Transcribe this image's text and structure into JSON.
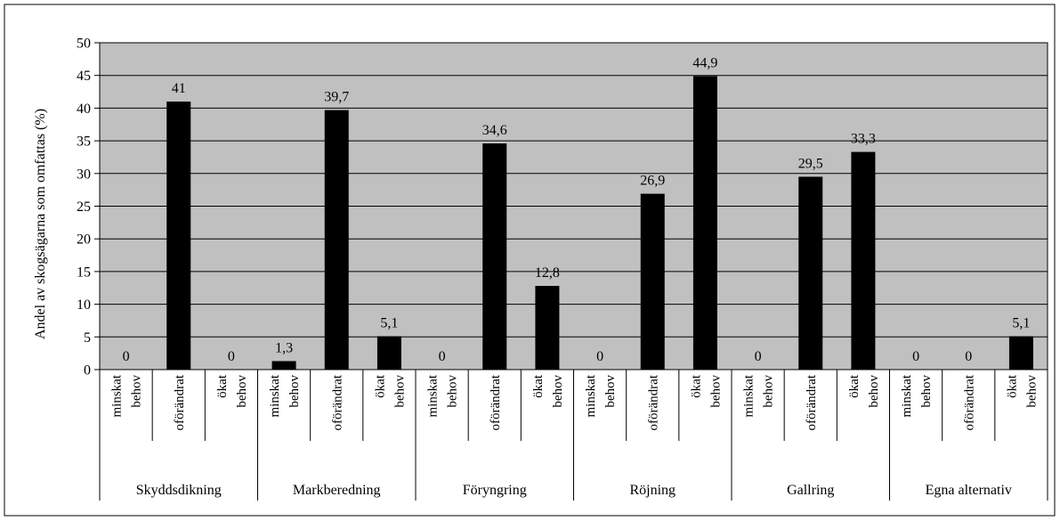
{
  "chart_data": {
    "type": "bar",
    "ylabel": "Andel av skogsägarna som omfattas (%)",
    "ylim": [
      0,
      50
    ],
    "yticks": [
      0,
      5,
      10,
      15,
      20,
      25,
      30,
      35,
      40,
      45,
      50
    ],
    "grid": true,
    "legend": "none",
    "colors": {
      "plot_bg": "#c0c0c0",
      "bar": "#000000",
      "grid": "#000000"
    },
    "groups": [
      {
        "name": "Skyddsdikning",
        "bars": [
          {
            "label": [
              "minskat",
              "behov"
            ],
            "value": 0,
            "value_label": "0"
          },
          {
            "label": [
              "oförändrat"
            ],
            "value": 41,
            "value_label": "41"
          },
          {
            "label": [
              "ökat",
              "behov"
            ],
            "value": 0,
            "value_label": "0"
          }
        ]
      },
      {
        "name": "Markberedning",
        "bars": [
          {
            "label": [
              "minskat",
              "behov"
            ],
            "value": 1.3,
            "value_label": "1,3"
          },
          {
            "label": [
              "oförändrat"
            ],
            "value": 39.7,
            "value_label": "39,7"
          },
          {
            "label": [
              "ökat",
              "behov"
            ],
            "value": 5.1,
            "value_label": "5,1"
          }
        ]
      },
      {
        "name": "Föryngring",
        "bars": [
          {
            "label": [
              "minskat",
              "behov"
            ],
            "value": 0,
            "value_label": "0"
          },
          {
            "label": [
              "oförändrat"
            ],
            "value": 34.6,
            "value_label": "34,6"
          },
          {
            "label": [
              "ökat",
              "behov"
            ],
            "value": 12.8,
            "value_label": "12,8"
          }
        ]
      },
      {
        "name": "Röjning",
        "bars": [
          {
            "label": [
              "minskat",
              "behov"
            ],
            "value": 0,
            "value_label": "0"
          },
          {
            "label": [
              "oförändrat"
            ],
            "value": 26.9,
            "value_label": "26,9"
          },
          {
            "label": [
              "ökat",
              "behov"
            ],
            "value": 44.9,
            "value_label": "44,9"
          }
        ]
      },
      {
        "name": "Gallring",
        "bars": [
          {
            "label": [
              "minskat",
              "behov"
            ],
            "value": 0,
            "value_label": "0"
          },
          {
            "label": [
              "oförändrat"
            ],
            "value": 29.5,
            "value_label": "29,5"
          },
          {
            "label": [
              "ökat",
              "behov"
            ],
            "value": 33.3,
            "value_label": "33,3"
          }
        ]
      },
      {
        "name": "Egna alternativ",
        "bars": [
          {
            "label": [
              "minskat",
              "behov"
            ],
            "value": 0,
            "value_label": "0"
          },
          {
            "label": [
              "oförändrat"
            ],
            "value": 0,
            "value_label": "0"
          },
          {
            "label": [
              "ökat",
              "behov"
            ],
            "value": 5.1,
            "value_label": "5,1"
          }
        ]
      }
    ]
  }
}
